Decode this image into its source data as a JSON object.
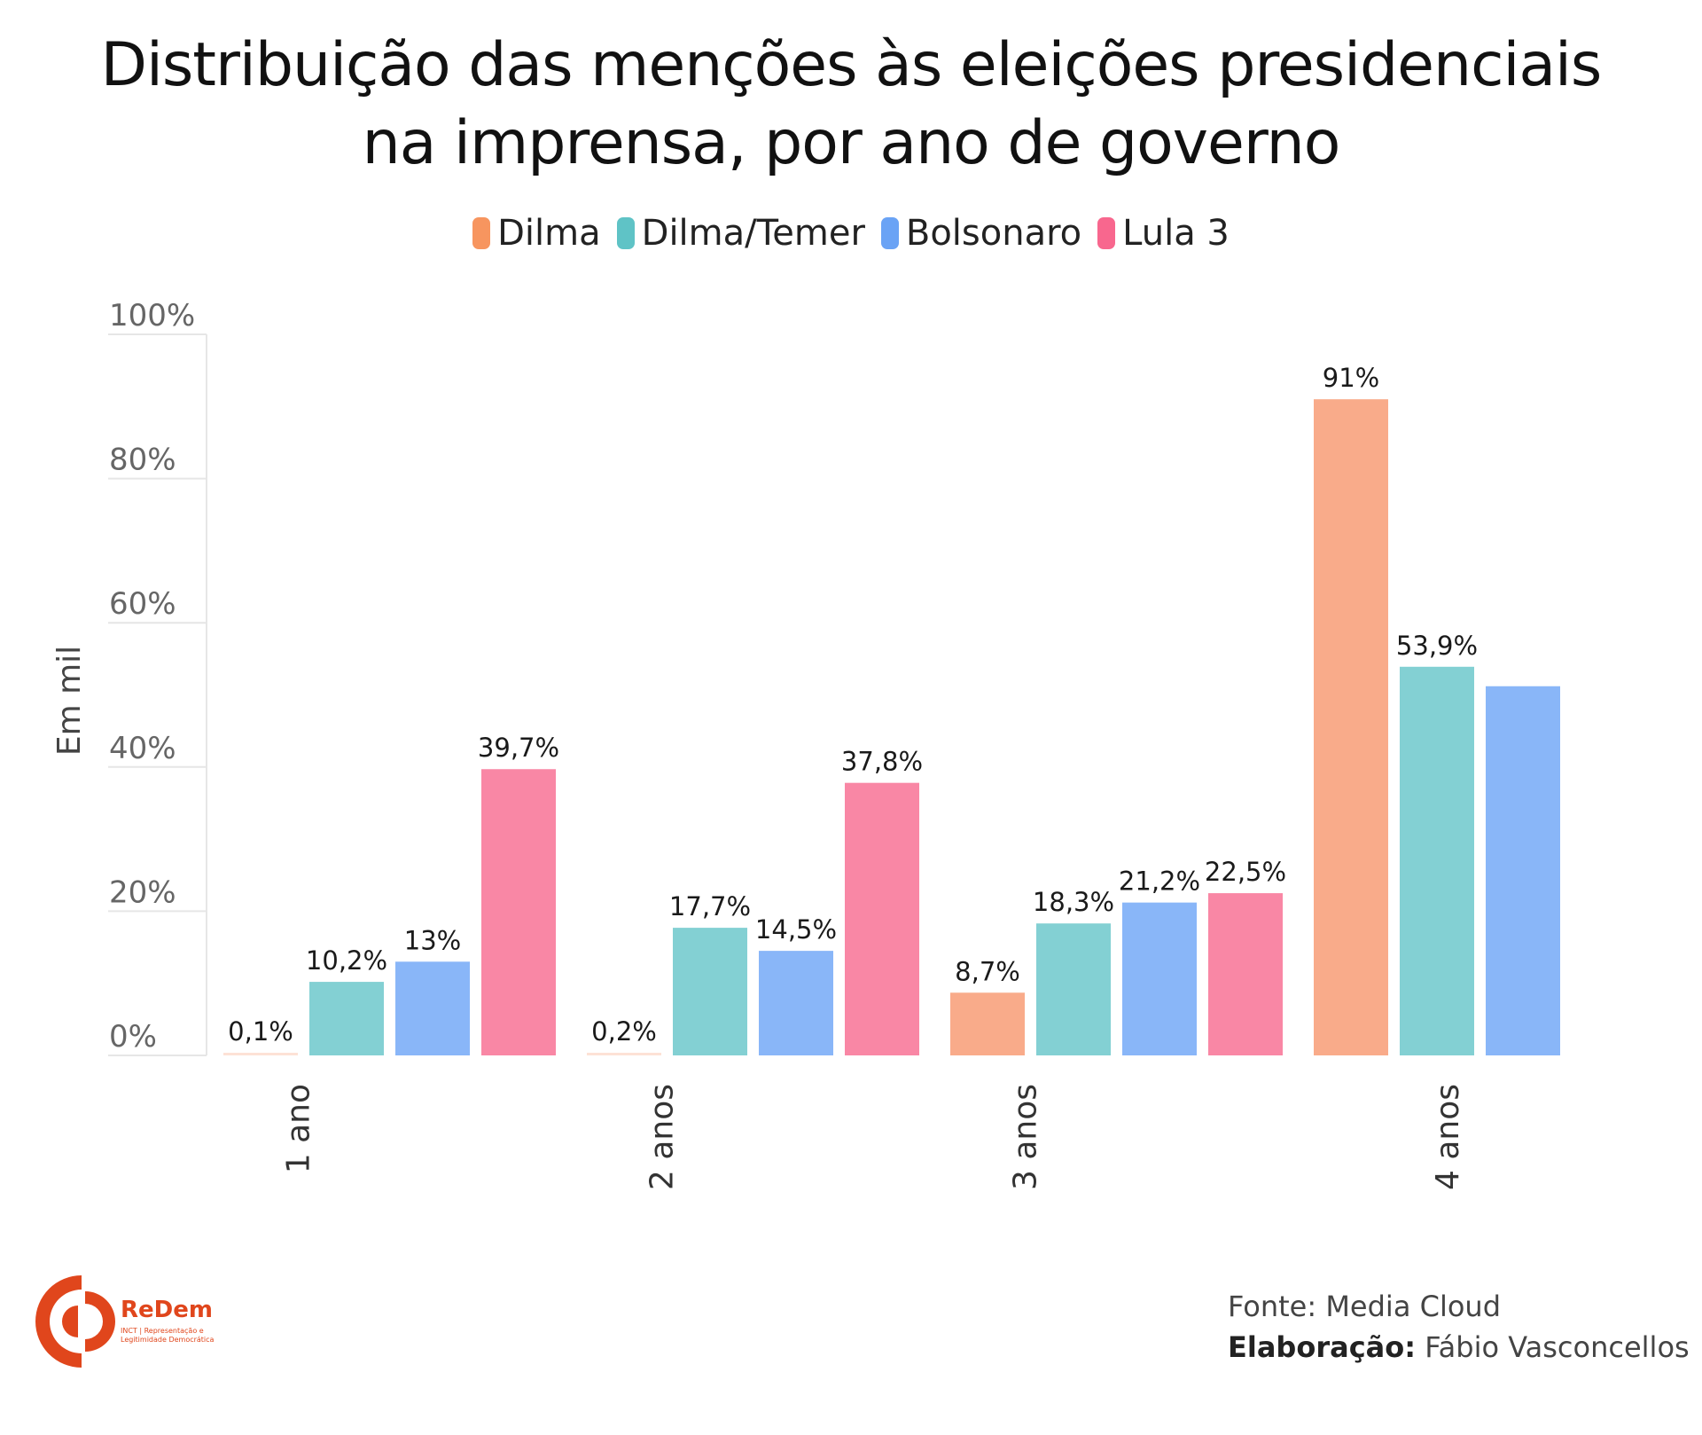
{
  "title_line1": "Distribuição das menções às eleições presidenciais",
  "title_line2": "na imprensa, por ano de governo",
  "footer": {
    "source_label": "Fonte:",
    "source_value": "Media Cloud",
    "author_label": "Elaboração:",
    "author_value": "Fábio Vasconcellos"
  },
  "logo": {
    "name": "ReDem",
    "subtitle": "INCT | Representação e Legitimidade Democrática",
    "color": "#e0461c"
  },
  "chart_data": {
    "type": "bar",
    "title": "Distribuição das menções às eleições presidenciais na imprensa, por ano de governo",
    "xlabel": "",
    "ylabel": "Em mil",
    "ylim": [
      0,
      100
    ],
    "yticks": [
      0,
      20,
      40,
      60,
      80,
      100
    ],
    "ytick_labels": [
      "0%",
      "20%",
      "40%",
      "60%",
      "80%",
      "100%"
    ],
    "grid": true,
    "legend_position": "top-center",
    "categories": [
      "1 ano",
      "2 anos",
      "3 anos",
      "4 anos"
    ],
    "series": [
      {
        "name": "Dilma",
        "color": "#f9ab8a",
        "legend_color": "#f7955f",
        "values": [
          0.1,
          0.2,
          8.7,
          91
        ],
        "labels": [
          "0,1%",
          "0,2%",
          "8,7%",
          "91%"
        ]
      },
      {
        "name": "Dilma/Temer",
        "color": "#83d0d3",
        "legend_color": "#5fc3c6",
        "values": [
          10.2,
          17.7,
          18.3,
          53.9
        ],
        "labels": [
          "10,2%",
          "17,7%",
          "18,3%",
          "53,9%"
        ]
      },
      {
        "name": "Bolsonaro",
        "color": "#89b6f8",
        "legend_color": "#6aa3f5",
        "values": [
          13,
          14.5,
          21.2,
          51.2
        ],
        "labels": [
          "13%",
          "14,5%",
          "21,2%",
          ""
        ]
      },
      {
        "name": "Lula 3",
        "color": "#f987a5",
        "legend_color": "#f8678e",
        "values": [
          39.7,
          37.8,
          22.5,
          null
        ],
        "labels": [
          "39,7%",
          "37,8%",
          "22,5%",
          ""
        ]
      }
    ]
  }
}
